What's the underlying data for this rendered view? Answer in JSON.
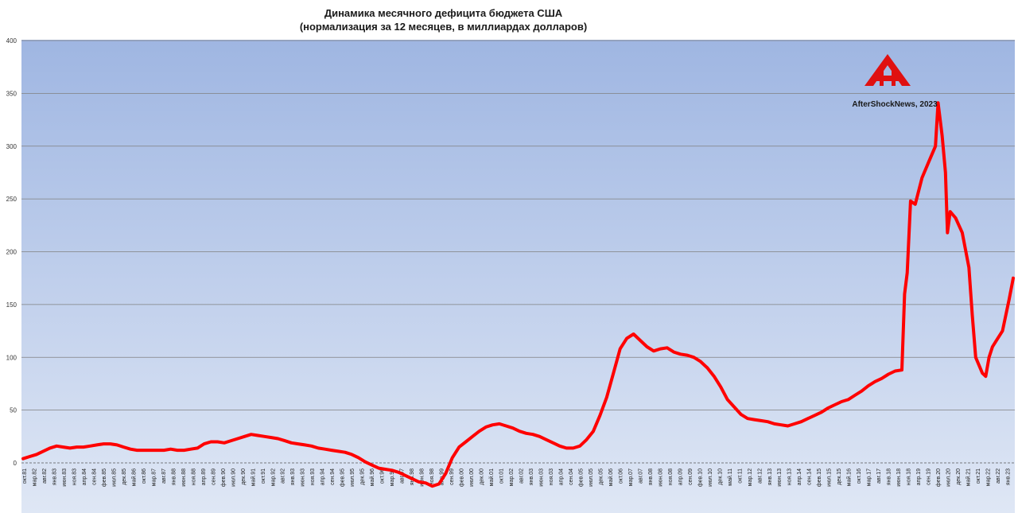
{
  "chart_data": {
    "type": "line",
    "title": "Динамика месячного дефицита бюджета США",
    "subtitle": "(нормализация за 12 месяцев, в миллиардах долларов)",
    "xlabel": "",
    "ylabel": "",
    "ylim": [
      -20,
      400
    ],
    "yticks": [
      "0",
      "50",
      "100",
      "150",
      "200",
      "250",
      "300",
      "350",
      "400"
    ],
    "grid": true,
    "x_tick_labels": [
      "окт.81",
      "мар.82",
      "авг.82",
      "янв.83",
      "июн.83",
      "ноя.83",
      "апр.84",
      "сен.84",
      "фев.85",
      "июл.85",
      "дек.85",
      "май.86",
      "окт.86",
      "мар.87",
      "авг.87",
      "янв.88",
      "июн.88",
      "ноя.88",
      "апр.89",
      "сен.89",
      "фев.90",
      "июл.90",
      "дек.90",
      "май.91",
      "окт.91",
      "мар.92",
      "авг.92",
      "янв.93",
      "июн.93",
      "ноя.93",
      "апр.94",
      "сен.94",
      "фев.95",
      "июл.95",
      "дек.95",
      "май.96",
      "окт.96",
      "мар.97",
      "авг.97",
      "янв.98",
      "июн.98",
      "ноя.98",
      "апр.99",
      "сен.99",
      "фев.00",
      "июл.00",
      "дек.00",
      "май.01",
      "окт.01",
      "мар.02",
      "авг.02",
      "янв.03",
      "июн.03",
      "ноя.03",
      "апр.04",
      "сен.04",
      "фев.05",
      "июл.05",
      "дек.05",
      "май.06",
      "окт.06",
      "мар.07",
      "авг.07",
      "янв.08",
      "июн.08",
      "ноя.08",
      "апр.09",
      "сен.09",
      "фев.10",
      "июл.10",
      "дек.10",
      "май.11",
      "окт.11",
      "мар.12",
      "авг.12",
      "янв.13",
      "июн.13",
      "ноя.13",
      "апр.14",
      "сен.14",
      "фев.15",
      "июл.15",
      "дек.15",
      "май.16",
      "окт.16",
      "мар.17",
      "авг.17",
      "янв.18",
      "июн.18",
      "ноя.18",
      "апр.19",
      "сен.19",
      "фев.20",
      "июл.20",
      "дек.20",
      "май.21",
      "окт.21",
      "мар.22",
      "авг.22",
      "янв.23"
    ],
    "series": [
      {
        "color": "#ff0000",
        "points": [
          [
            0,
            4
          ],
          [
            1,
            6
          ],
          [
            2,
            8
          ],
          [
            3,
            11
          ],
          [
            4,
            14
          ],
          [
            5,
            16
          ],
          [
            6,
            15
          ],
          [
            7,
            14
          ],
          [
            8,
            15
          ],
          [
            9,
            15
          ],
          [
            10,
            16
          ],
          [
            11,
            17
          ],
          [
            12,
            18
          ],
          [
            13,
            18
          ],
          [
            14,
            17
          ],
          [
            15,
            15
          ],
          [
            16,
            13
          ],
          [
            17,
            12
          ],
          [
            18,
            12
          ],
          [
            19,
            12
          ],
          [
            20,
            12
          ],
          [
            21,
            12
          ],
          [
            22,
            13
          ],
          [
            23,
            12
          ],
          [
            24,
            12
          ],
          [
            25,
            13
          ],
          [
            26,
            14
          ],
          [
            27,
            18
          ],
          [
            28,
            20
          ],
          [
            29,
            20
          ],
          [
            30,
            19
          ],
          [
            31,
            21
          ],
          [
            32,
            23
          ],
          [
            33,
            25
          ],
          [
            34,
            27
          ],
          [
            35,
            26
          ],
          [
            36,
            25
          ],
          [
            37,
            24
          ],
          [
            38,
            23
          ],
          [
            39,
            21
          ],
          [
            40,
            19
          ],
          [
            41,
            18
          ],
          [
            42,
            17
          ],
          [
            43,
            16
          ],
          [
            44,
            14
          ],
          [
            45,
            13
          ],
          [
            46,
            12
          ],
          [
            47,
            11
          ],
          [
            48,
            10
          ],
          [
            49,
            8
          ],
          [
            50,
            5
          ],
          [
            51,
            1
          ],
          [
            52,
            -2
          ],
          [
            53,
            -5
          ],
          [
            54,
            -6
          ],
          [
            55,
            -7
          ],
          [
            56,
            -9
          ],
          [
            57,
            -12
          ],
          [
            58,
            -15
          ],
          [
            59,
            -18
          ],
          [
            60,
            -19
          ],
          [
            61,
            -22
          ],
          [
            62,
            -20
          ],
          [
            63,
            -10
          ],
          [
            64,
            5
          ],
          [
            65,
            15
          ],
          [
            66,
            20
          ],
          [
            67,
            25
          ],
          [
            68,
            30
          ],
          [
            69,
            34
          ],
          [
            70,
            36
          ],
          [
            71,
            37
          ],
          [
            72,
            35
          ],
          [
            73,
            33
          ],
          [
            74,
            30
          ],
          [
            75,
            28
          ],
          [
            76,
            27
          ],
          [
            77,
            25
          ],
          [
            78,
            22
          ],
          [
            79,
            19
          ],
          [
            80,
            16
          ],
          [
            81,
            14
          ],
          [
            82,
            14
          ],
          [
            83,
            16
          ],
          [
            84,
            22
          ],
          [
            85,
            30
          ],
          [
            86,
            45
          ],
          [
            87,
            62
          ],
          [
            88,
            85
          ],
          [
            89,
            108
          ],
          [
            90,
            118
          ],
          [
            91,
            122
          ],
          [
            92,
            116
          ],
          [
            93,
            110
          ],
          [
            94,
            106
          ],
          [
            95,
            108
          ],
          [
            96,
            109
          ],
          [
            97,
            105
          ],
          [
            98,
            103
          ],
          [
            99,
            102
          ],
          [
            100,
            100
          ],
          [
            101,
            96
          ],
          [
            102,
            90
          ],
          [
            103,
            82
          ],
          [
            104,
            72
          ],
          [
            105,
            60
          ],
          [
            106,
            53
          ],
          [
            107,
            46
          ],
          [
            108,
            42
          ],
          [
            109,
            41
          ],
          [
            110,
            40
          ],
          [
            111,
            39
          ],
          [
            112,
            37
          ],
          [
            113,
            36
          ],
          [
            114,
            35
          ],
          [
            115,
            37
          ],
          [
            116,
            39
          ],
          [
            117,
            42
          ],
          [
            118,
            45
          ],
          [
            119,
            48
          ],
          [
            120,
            52
          ],
          [
            121,
            55
          ],
          [
            122,
            58
          ],
          [
            123,
            60
          ],
          [
            124,
            64
          ],
          [
            125,
            68
          ],
          [
            126,
            73
          ],
          [
            127,
            77
          ],
          [
            128,
            80
          ],
          [
            129,
            84
          ],
          [
            130,
            87
          ],
          [
            131,
            88
          ],
          [
            131.4,
            160
          ],
          [
            131.8,
            180
          ],
          [
            132.3,
            248
          ],
          [
            133,
            245
          ],
          [
            134,
            270
          ],
          [
            135,
            285
          ],
          [
            136,
            300
          ],
          [
            136.4,
            341
          ],
          [
            137,
            310
          ],
          [
            137.5,
            275
          ],
          [
            137.8,
            218
          ],
          [
            138.2,
            238
          ],
          [
            139,
            232
          ],
          [
            139.5,
            225
          ],
          [
            140,
            218
          ],
          [
            141,
            185
          ],
          [
            141.5,
            140
          ],
          [
            142,
            100
          ],
          [
            143,
            85
          ],
          [
            143.5,
            82
          ],
          [
            144,
            100
          ],
          [
            144.5,
            110
          ],
          [
            145,
            115
          ],
          [
            146,
            125
          ],
          [
            146.5,
            140
          ],
          [
            147,
            155
          ],
          [
            147.6,
            175
          ]
        ]
      }
    ]
  },
  "watermark": {
    "text": "AfterShockNews, 2023",
    "logo": "aftershock-logo"
  },
  "colors": {
    "plot_top": "#9fb6e2",
    "plot_bottom": "#dfe7f5",
    "line": "#ff0000",
    "grid": "#808080"
  }
}
